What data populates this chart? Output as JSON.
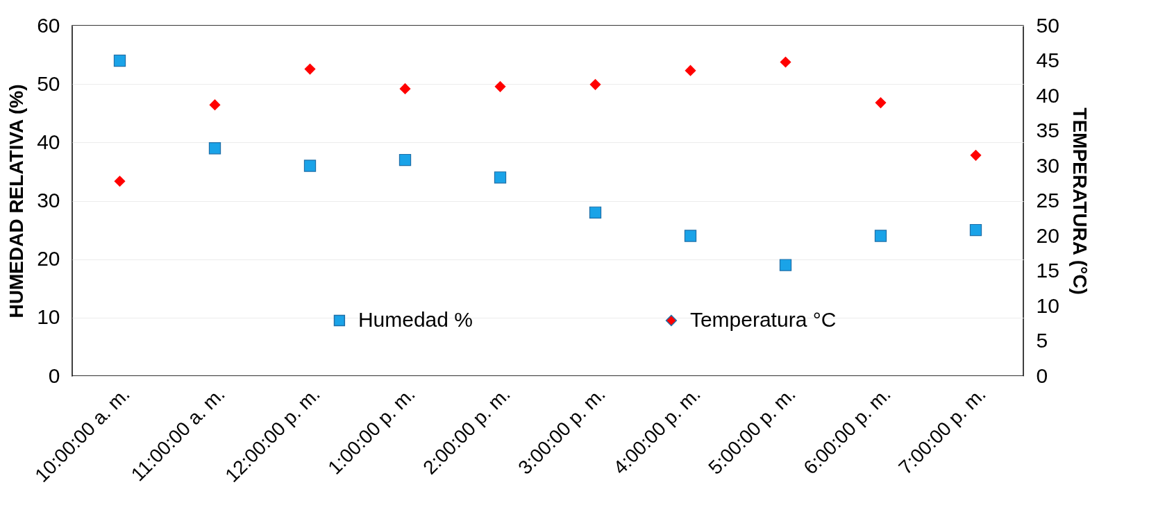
{
  "chart_data": {
    "type": "scatter",
    "ylabel": "HUMEDAD RELATIVA (%)",
    "y2label": "TEMPERATURA (°C)",
    "categories": [
      "10:00:00 a. m.",
      "11:00:00 a. m.",
      "12:00:00 p. m.",
      "1:00:00 p. m.",
      "2:00:00 p. m.",
      "3:00:00 p. m.",
      "4:00:00 p. m.",
      "5:00:00 p. m.",
      "6:00:00 p. m.",
      "7:00:00 p. m."
    ],
    "series": [
      {
        "name": "Humedad %",
        "color": "#1aa3e8",
        "marker": "square",
        "values": [
          54,
          39,
          36,
          37,
          34,
          28,
          24,
          19,
          24,
          25
        ]
      },
      {
        "name": "Temperatura °C",
        "color": "#ff0000",
        "marker": "diamond",
        "axis": "y2",
        "values": [
          27.8,
          38.7,
          43.8,
          41.0,
          41.3,
          41.6,
          43.6,
          44.8,
          39.0,
          31.5
        ]
      }
    ],
    "ylim": [
      0,
      60
    ],
    "yticks": [
      0,
      10,
      20,
      30,
      40,
      50,
      60
    ],
    "y2lim": [
      0,
      50
    ],
    "y2ticks": [
      0,
      5,
      10,
      15,
      20,
      25,
      30,
      35,
      40,
      45,
      50
    ],
    "grid": "y",
    "legend": "bottom"
  }
}
